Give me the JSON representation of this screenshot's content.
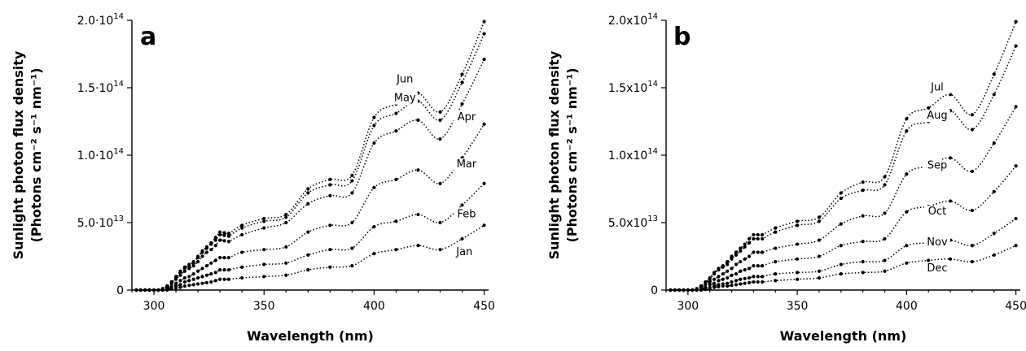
{
  "chart_data": [
    {
      "type": "line",
      "panel_label": "a",
      "xlabel": "Wavelength (nm)",
      "ylabel_line1": "Sunlight photon flux density",
      "ylabel_line2": "(Photons cm⁻² s⁻¹ nm⁻¹)",
      "xlim": [
        290,
        452
      ],
      "ylim": [
        0,
        200000000000000.0
      ],
      "x_ticks": [
        300,
        350,
        400,
        450
      ],
      "x_tick_labels": [
        "300",
        "350",
        "400",
        "450"
      ],
      "y_ticks": [
        0,
        50000000000000.0,
        100000000000000.0,
        150000000000000.0,
        200000000000000.0
      ],
      "y_tick_labels": [
        {
          "mantissa": "0",
          "exp": ""
        },
        {
          "mantissa": "5.0·10",
          "exp": "13"
        },
        {
          "mantissa": "1.0·10",
          "exp": "14"
        },
        {
          "mantissa": "1.5·10",
          "exp": "14"
        },
        {
          "mantissa": "2.0·10",
          "exp": "14"
        }
      ],
      "grid": false,
      "x": [
        292,
        294,
        296,
        298,
        300,
        302,
        304,
        306,
        308,
        310,
        312,
        314,
        316,
        318,
        320,
        322,
        324,
        326,
        328,
        330,
        332,
        334,
        340,
        350,
        360,
        370,
        380,
        390,
        400,
        410,
        420,
        430,
        440,
        450
      ],
      "series": [
        {
          "name": "Jun",
          "label_x": 414,
          "label_y": 154000000000000.0,
          "values": [
            0.0,
            0.0,
            0.0,
            0.0,
            0.0,
            0.0,
            0.1,
            0.3,
            0.6,
            1.0,
            1.4,
            1.7,
            1.9,
            2.1,
            2.5,
            2.9,
            3.2,
            3.5,
            3.9,
            4.3,
            4.25,
            4.2,
            4.8,
            5.3,
            5.6,
            7.5,
            8.2,
            8.5,
            12.8,
            13.8,
            14.6,
            13.2,
            16.0,
            19.9
          ]
        },
        {
          "name": "May",
          "label_x": 414,
          "label_y": 140000000000000.0,
          "values": [
            0.0,
            0.0,
            0.0,
            0.0,
            0.0,
            0.0,
            0.1,
            0.3,
            0.6,
            0.9,
            1.3,
            1.6,
            1.8,
            2.0,
            2.4,
            2.8,
            3.1,
            3.4,
            3.7,
            4.1,
            4.05,
            4.0,
            4.6,
            5.1,
            5.4,
            7.2,
            7.8,
            8.1,
            12.2,
            13.1,
            14.0,
            12.6,
            15.4,
            19.0
          ]
        },
        {
          "name": "Apr",
          "label_x": 442,
          "label_y": 126000000000000.0,
          "values": [
            0.0,
            0.0,
            0.0,
            0.0,
            0.0,
            0.0,
            0.1,
            0.2,
            0.5,
            0.8,
            1.1,
            1.4,
            1.6,
            1.8,
            2.1,
            2.5,
            2.8,
            3.0,
            3.3,
            3.7,
            3.65,
            3.6,
            4.1,
            4.6,
            5.0,
            6.4,
            7.0,
            7.2,
            10.9,
            11.8,
            12.6,
            11.2,
            13.8,
            17.1
          ]
        },
        {
          "name": "Mar",
          "label_x": 442,
          "label_y": 91000000000000.0,
          "values": [
            0.0,
            0.0,
            0.0,
            0.0,
            0.0,
            0.0,
            0.05,
            0.1,
            0.3,
            0.5,
            0.7,
            0.9,
            1.0,
            1.2,
            1.4,
            1.6,
            1.8,
            2.0,
            2.2,
            2.4,
            2.4,
            2.4,
            2.8,
            3.0,
            3.2,
            4.3,
            4.8,
            5.0,
            7.6,
            8.2,
            8.9,
            7.9,
            9.8,
            12.3
          ]
        },
        {
          "name": "Feb",
          "label_x": 442,
          "label_y": 54000000000000.0,
          "values": [
            0.0,
            0.0,
            0.0,
            0.0,
            0.0,
            0.0,
            0.0,
            0.05,
            0.2,
            0.3,
            0.4,
            0.6,
            0.7,
            0.8,
            0.9,
            1.0,
            1.1,
            1.2,
            1.3,
            1.5,
            1.5,
            1.5,
            1.7,
            1.9,
            2.0,
            2.6,
            3.0,
            3.1,
            4.7,
            5.1,
            5.6,
            5.0,
            6.3,
            7.9
          ]
        },
        {
          "name": "Jan",
          "label_x": 441,
          "label_y": 26000000000000.0,
          "values": [
            0.0,
            0.0,
            0.0,
            0.0,
            0.0,
            0.0,
            0.0,
            0.0,
            0.1,
            0.15,
            0.2,
            0.3,
            0.35,
            0.4,
            0.45,
            0.5,
            0.55,
            0.6,
            0.7,
            0.8,
            0.8,
            0.8,
            0.9,
            1.0,
            1.1,
            1.5,
            1.7,
            1.8,
            2.7,
            3.0,
            3.3,
            3.0,
            3.8,
            4.8
          ]
        }
      ]
    },
    {
      "type": "line",
      "panel_label": "b",
      "xlabel": "Wavelength (nm)",
      "ylabel_line1": "Sunlight photon flux density",
      "ylabel_line2": "(Photons cm⁻² s⁻¹ nm⁻¹)",
      "xlim": [
        290,
        452
      ],
      "ylim": [
        0,
        200000000000000.0
      ],
      "x_ticks": [
        300,
        350,
        400,
        450
      ],
      "x_tick_labels": [
        "300",
        "350",
        "400",
        "450"
      ],
      "y_ticks": [
        0,
        50000000000000.0,
        100000000000000.0,
        150000000000000.0,
        200000000000000.0
      ],
      "y_tick_labels": [
        {
          "mantissa": "0",
          "exp": ""
        },
        {
          "mantissa": "5.0x10",
          "exp": "13"
        },
        {
          "mantissa": "1.0x10",
          "exp": "14"
        },
        {
          "mantissa": "1.5x10",
          "exp": "14"
        },
        {
          "mantissa": "2.0x10",
          "exp": "14"
        }
      ],
      "grid": false,
      "x": [
        292,
        294,
        296,
        298,
        300,
        302,
        304,
        306,
        308,
        310,
        312,
        314,
        316,
        318,
        320,
        322,
        324,
        326,
        328,
        330,
        332,
        334,
        340,
        350,
        360,
        370,
        380,
        390,
        400,
        410,
        420,
        430,
        440,
        450
      ],
      "series": [
        {
          "name": "Jul",
          "label_x": 414,
          "label_y": 148000000000000.0,
          "values": [
            0.0,
            0.0,
            0.0,
            0.0,
            0.0,
            0.0,
            0.1,
            0.3,
            0.6,
            0.9,
            1.3,
            1.6,
            1.8,
            2.1,
            2.5,
            2.8,
            3.1,
            3.4,
            3.8,
            4.1,
            4.1,
            4.1,
            4.6,
            5.1,
            5.4,
            7.2,
            8.0,
            8.4,
            12.7,
            13.5,
            14.5,
            13.0,
            16.0,
            19.9
          ]
        },
        {
          "name": "Aug",
          "label_x": 414,
          "label_y": 127000000000000.0,
          "values": [
            0.0,
            0.0,
            0.0,
            0.0,
            0.0,
            0.0,
            0.1,
            0.3,
            0.5,
            0.8,
            1.2,
            1.5,
            1.7,
            1.9,
            2.3,
            2.6,
            2.9,
            3.2,
            3.5,
            3.8,
            3.8,
            3.8,
            4.3,
            4.8,
            5.1,
            6.8,
            7.4,
            7.8,
            11.8,
            12.5,
            13.3,
            11.9,
            14.5,
            18.1
          ]
        },
        {
          "name": "Sep",
          "label_x": 414,
          "label_y": 90000000000000.0,
          "values": [
            0.0,
            0.0,
            0.0,
            0.0,
            0.0,
            0.0,
            0.05,
            0.2,
            0.4,
            0.6,
            0.8,
            1.0,
            1.2,
            1.4,
            1.6,
            1.9,
            2.1,
            2.3,
            2.5,
            2.8,
            2.8,
            2.8,
            3.1,
            3.4,
            3.7,
            4.9,
            5.5,
            5.7,
            8.6,
            9.2,
            9.8,
            8.8,
            10.9,
            13.6
          ]
        },
        {
          "name": "Oct",
          "label_x": 414,
          "label_y": 56000000000000.0,
          "values": [
            0.0,
            0.0,
            0.0,
            0.0,
            0.0,
            0.0,
            0.0,
            0.1,
            0.2,
            0.4,
            0.5,
            0.7,
            0.8,
            0.9,
            1.1,
            1.2,
            1.4,
            1.5,
            1.6,
            1.8,
            1.8,
            1.8,
            2.1,
            2.3,
            2.5,
            3.3,
            3.6,
            3.8,
            5.8,
            6.2,
            6.6,
            5.9,
            7.3,
            9.2
          ]
        },
        {
          "name": "Nov",
          "label_x": 414,
          "label_y": 33000000000000.0,
          "values": [
            0.0,
            0.0,
            0.0,
            0.0,
            0.0,
            0.0,
            0.0,
            0.05,
            0.1,
            0.2,
            0.3,
            0.4,
            0.45,
            0.5,
            0.6,
            0.7,
            0.8,
            0.85,
            0.9,
            1.0,
            1.0,
            1.0,
            1.2,
            1.3,
            1.4,
            1.9,
            2.1,
            2.2,
            3.3,
            3.5,
            3.7,
            3.3,
            4.2,
            5.3
          ]
        },
        {
          "name": "Dec",
          "label_x": 414,
          "label_y": 14000000000000.0,
          "values": [
            0.0,
            0.0,
            0.0,
            0.0,
            0.0,
            0.0,
            0.0,
            0.0,
            0.05,
            0.1,
            0.2,
            0.25,
            0.3,
            0.3,
            0.35,
            0.4,
            0.45,
            0.5,
            0.55,
            0.6,
            0.6,
            0.6,
            0.7,
            0.8,
            0.9,
            1.2,
            1.3,
            1.4,
            2.0,
            2.2,
            2.3,
            2.1,
            2.6,
            3.3
          ]
        }
      ]
    }
  ]
}
